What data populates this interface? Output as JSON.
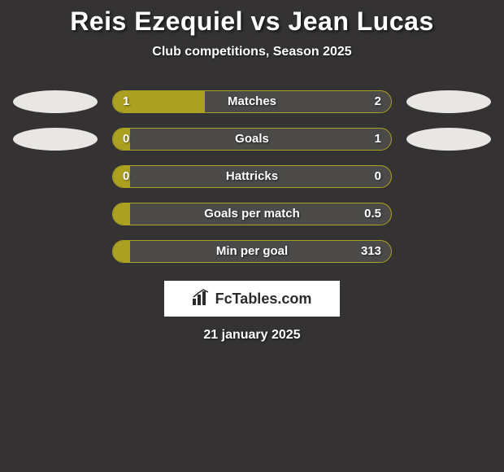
{
  "title": "Reis Ezequiel vs Jean Lucas",
  "subtitle": "Club competitions, Season 2025",
  "date": "21 january 2025",
  "branding": {
    "text": "FcTables.com"
  },
  "colors": {
    "page_bg": "#343233",
    "bar_outer_bg": "#4b4a48",
    "bar_fill": "#aba01f",
    "bar_border": "#aba01f",
    "ellipse": "#e8e7e4",
    "text": "#ffffff",
    "branding_bg": "#ffffff",
    "branding_text": "#2c2c2c"
  },
  "rows": [
    {
      "label": "Matches",
      "left_val": "1",
      "right_val": "2",
      "fill_pct": 33,
      "show_ellipses": true
    },
    {
      "label": "Goals",
      "left_val": "0",
      "right_val": "1",
      "fill_pct": 6,
      "show_ellipses": true
    },
    {
      "label": "Hattricks",
      "left_val": "0",
      "right_val": "0",
      "fill_pct": 6,
      "show_ellipses": false
    },
    {
      "label": "Goals per match",
      "left_val": "",
      "right_val": "0.5",
      "fill_pct": 6,
      "show_ellipses": false
    },
    {
      "label": "Min per goal",
      "left_val": "",
      "right_val": "313",
      "fill_pct": 6,
      "show_ellipses": false
    }
  ]
}
